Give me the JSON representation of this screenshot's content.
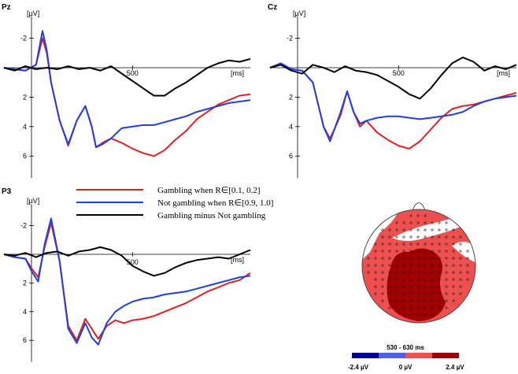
{
  "chart_data": [
    {
      "type": "line",
      "channel": "Pz",
      "yunit": "[µV]",
      "xunit": "[ms]",
      "ylim": [
        -3.5,
        7.5
      ],
      "xlim": [
        -100,
        1050
      ],
      "yticks": [
        "-2",
        "2",
        "4",
        "6"
      ],
      "ytick_values": [
        -2,
        2,
        4,
        6
      ],
      "xtick_label": "500",
      "xtick_value": 500,
      "series": [
        {
          "name": "Gambling when R∈[0.1, 0.2]",
          "color": "#e02020",
          "x": [
            -100,
            -50,
            0,
            50,
            80,
            100,
            120,
            160,
            200,
            240,
            280,
            310,
            330,
            360,
            400,
            450,
            500,
            550,
            600,
            650,
            700,
            750,
            800,
            850,
            900,
            950,
            1000,
            1050
          ],
          "y": [
            0.0,
            0.1,
            0.2,
            -0.2,
            -2.0,
            -1.0,
            1.0,
            3.6,
            5.3,
            3.6,
            2.6,
            4.0,
            5.4,
            5.1,
            4.8,
            5.1,
            5.5,
            5.8,
            6.0,
            5.6,
            4.9,
            4.3,
            3.5,
            3.0,
            2.5,
            2.2,
            1.9,
            1.8
          ]
        },
        {
          "name": "Not gambling when R∈[0.9, 1.0]",
          "color": "#1f3fe0",
          "x": [
            -100,
            -50,
            0,
            50,
            80,
            100,
            120,
            160,
            200,
            240,
            280,
            310,
            330,
            360,
            400,
            450,
            500,
            550,
            600,
            650,
            700,
            750,
            800,
            850,
            900,
            950,
            1000,
            1050
          ],
          "y": [
            0.0,
            0.1,
            0.2,
            -0.2,
            -2.5,
            -1.2,
            1.0,
            3.6,
            5.2,
            3.6,
            2.6,
            4.0,
            5.4,
            5.2,
            4.8,
            4.1,
            4.0,
            3.9,
            3.9,
            3.7,
            3.5,
            3.3,
            3.0,
            2.8,
            2.6,
            2.4,
            2.3,
            2.2
          ]
        },
        {
          "name": "Gambling minus Not gambling",
          "color": "#000000",
          "x": [
            -100,
            -50,
            0,
            50,
            100,
            150,
            200,
            250,
            300,
            350,
            400,
            450,
            500,
            550,
            600,
            650,
            700,
            750,
            800,
            850,
            900,
            950,
            1000,
            1050
          ],
          "y": [
            0.0,
            0.2,
            -0.1,
            0.1,
            0.0,
            0.1,
            -0.1,
            0.1,
            0.0,
            0.2,
            -0.1,
            0.4,
            0.9,
            1.4,
            1.9,
            1.9,
            1.4,
            1.0,
            0.5,
            0.0,
            -0.3,
            -0.5,
            -0.4,
            -0.6
          ]
        }
      ]
    },
    {
      "type": "line",
      "channel": "Cz",
      "yunit": "[µV]",
      "xunit": "[ms]",
      "ylim": [
        -3.5,
        7.5
      ],
      "xlim": [
        -100,
        1050
      ],
      "yticks": [
        "-2",
        "2",
        "4",
        "6"
      ],
      "ytick_values": [
        -2,
        2,
        4,
        6
      ],
      "xtick_label": "500",
      "xtick_value": 500,
      "series": [
        {
          "name": "Gambling when R∈[0.1, 0.2]",
          "color": "#e02020",
          "x": [
            -100,
            -50,
            0,
            50,
            100,
            150,
            180,
            200,
            230,
            260,
            290,
            320,
            350,
            400,
            450,
            500,
            550,
            600,
            650,
            700,
            750,
            800,
            850,
            900,
            950,
            1000,
            1050
          ],
          "y": [
            0.0,
            -0.3,
            0.1,
            0.2,
            1.0,
            4.0,
            4.8,
            4.2,
            3.2,
            1.6,
            3.0,
            4.0,
            3.6,
            4.4,
            4.9,
            5.3,
            5.5,
            5.0,
            4.2,
            3.4,
            2.8,
            2.6,
            2.5,
            2.3,
            2.1,
            1.9,
            1.7
          ]
        },
        {
          "name": "Not gambling when R∈[0.9, 1.0]",
          "color": "#1f3fe0",
          "x": [
            -100,
            -50,
            0,
            50,
            100,
            150,
            180,
            200,
            230,
            260,
            290,
            320,
            350,
            400,
            450,
            500,
            550,
            600,
            650,
            700,
            750,
            800,
            850,
            900,
            950,
            1000,
            1050
          ],
          "y": [
            0.0,
            -0.3,
            0.1,
            0.2,
            1.0,
            4.0,
            5.0,
            4.2,
            3.0,
            1.6,
            3.0,
            3.8,
            3.6,
            3.4,
            3.3,
            3.3,
            3.4,
            3.5,
            3.4,
            3.3,
            3.2,
            3.0,
            2.6,
            2.3,
            2.1,
            2.0,
            1.9
          ]
        },
        {
          "name": "Gambling minus Not gambling",
          "color": "#000000",
          "x": [
            -100,
            -50,
            0,
            50,
            100,
            150,
            200,
            250,
            300,
            350,
            400,
            450,
            500,
            550,
            600,
            650,
            700,
            750,
            800,
            850,
            900,
            950,
            1000,
            1050
          ],
          "y": [
            0.0,
            -0.2,
            0.2,
            0.4,
            -0.2,
            0.0,
            0.3,
            -0.1,
            0.2,
            0.3,
            0.5,
            0.9,
            1.3,
            1.8,
            2.1,
            1.4,
            0.5,
            -0.3,
            -0.7,
            -0.4,
            0.2,
            -0.1,
            0.1,
            -0.2
          ]
        }
      ]
    },
    {
      "type": "line",
      "channel": "P3",
      "yunit": "[µV]",
      "xunit": "[ms]",
      "ylim": [
        -3.5,
        7.5
      ],
      "xlim": [
        -100,
        1050
      ],
      "yticks": [
        "-2",
        "2",
        "4",
        "6"
      ],
      "ytick_values": [
        -2,
        2,
        4,
        6
      ],
      "xtick_label": "500",
      "xtick_value": 500,
      "series": [
        {
          "name": "Gambling when R∈[0.1, 0.2]",
          "color": "#e02020",
          "x": [
            -100,
            -50,
            0,
            30,
            60,
            90,
            120,
            160,
            200,
            240,
            280,
            310,
            340,
            380,
            420,
            460,
            500,
            550,
            600,
            650,
            700,
            750,
            800,
            850,
            900,
            950,
            1000,
            1050
          ],
          "y": [
            0.0,
            0.2,
            0.3,
            1.0,
            1.6,
            -0.5,
            -2.2,
            0.5,
            5.0,
            6.0,
            4.5,
            5.2,
            5.9,
            5.0,
            4.6,
            4.8,
            4.6,
            4.5,
            4.3,
            4.0,
            3.7,
            3.4,
            3.0,
            2.6,
            2.3,
            2.0,
            1.8,
            1.3
          ]
        },
        {
          "name": "Not gambling when R∈[0.9, 1.0]",
          "color": "#1f3fe0",
          "x": [
            -100,
            -50,
            0,
            30,
            60,
            90,
            120,
            160,
            200,
            240,
            280,
            310,
            340,
            380,
            420,
            460,
            500,
            550,
            600,
            650,
            700,
            750,
            800,
            850,
            900,
            950,
            1000,
            1050
          ],
          "y": [
            0.0,
            0.2,
            0.3,
            1.2,
            1.9,
            -0.7,
            -2.5,
            0.5,
            5.2,
            6.2,
            4.8,
            5.8,
            6.3,
            4.8,
            4.0,
            3.6,
            3.3,
            3.1,
            3.0,
            2.8,
            2.7,
            2.6,
            2.4,
            2.2,
            2.0,
            1.8,
            1.6,
            1.5
          ]
        },
        {
          "name": "Gambling minus Not gambling",
          "color": "#000000",
          "x": [
            -100,
            -50,
            0,
            50,
            100,
            150,
            200,
            250,
            300,
            350,
            400,
            450,
            500,
            550,
            600,
            650,
            700,
            750,
            800,
            850,
            900,
            950,
            1000,
            1050
          ],
          "y": [
            0.0,
            0.1,
            -0.1,
            0.2,
            -0.1,
            -0.2,
            0.1,
            -0.2,
            -0.3,
            -0.5,
            -0.3,
            0.1,
            0.8,
            1.2,
            1.5,
            1.3,
            0.9,
            0.6,
            0.4,
            0.3,
            0.2,
            0.3,
            0.0,
            -0.3
          ]
        }
      ]
    }
  ],
  "legend": [
    {
      "label": "Gambling when R∈[0.1, 0.2]",
      "color": "#e02020"
    },
    {
      "label": "Not gambling when R∈[0.9, 1.0]",
      "color": "#1f3fe0"
    },
    {
      "label": "Gambling minus Not gambling",
      "color": "#000000"
    }
  ],
  "topomap": {
    "time_window": "530 - 630 ms",
    "scale_min": "-2.4 µV",
    "scale_mid": "0 µV",
    "scale_max": "2.4 µV",
    "colors": {
      "dark_blue": "#000099",
      "light_blue": "#4f5fe8",
      "light_red": "#ee4f4f",
      "dark_red": "#a00000",
      "white": "#ffffff"
    }
  }
}
